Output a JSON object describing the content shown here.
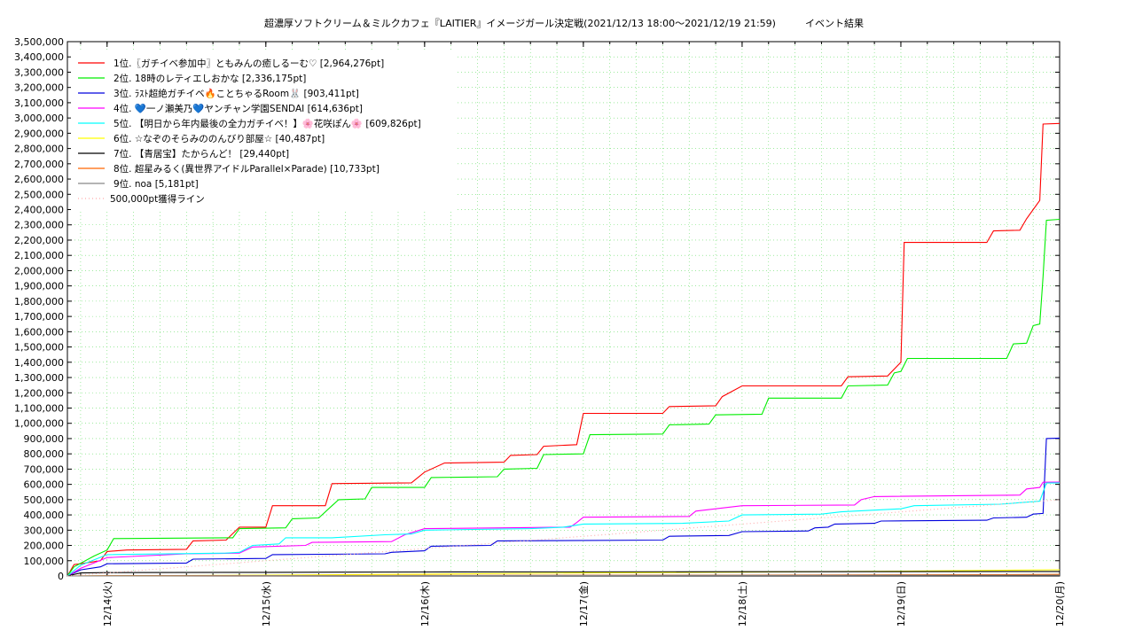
{
  "chart_data": {
    "type": "line",
    "title": "超濃厚ソフトクリーム＆ミルクカフェ『LAITIER』イメージガール決定戦(2021/12/13 18:00～2021/12/19 21:59)　　　イベント結果",
    "xlabel": "",
    "ylabel": "",
    "xlim": [
      "2021-12-13 18:00",
      "2021-12-20 00:00"
    ],
    "ylim": [
      0,
      3500000
    ],
    "y_ticks": [
      "0",
      "100,000",
      "200,000",
      "300,000",
      "400,000",
      "500,000",
      "600,000",
      "700,000",
      "800,000",
      "900,000",
      "1,000,000",
      "1,100,000",
      "1,200,000",
      "1,300,000",
      "1,400,000",
      "1,500,000",
      "1,600,000",
      "1,700,000",
      "1,800,000",
      "1,900,000",
      "2,000,000",
      "2,100,000",
      "2,200,000",
      "2,300,000",
      "2,400,000",
      "2,500,000",
      "2,600,000",
      "2,700,000",
      "2,800,000",
      "2,900,000",
      "3,000,000",
      "3,100,000",
      "3,200,000",
      "3,300,000",
      "3,400,000",
      "3,500,000"
    ],
    "x_ticks": [
      {
        "t": "2021-12-14 00:00",
        "label": "12/14(火)"
      },
      {
        "t": "2021-12-15 00:00",
        "label": "12/15(水)"
      },
      {
        "t": "2021-12-16 00:00",
        "label": "12/16(木)"
      },
      {
        "t": "2021-12-17 00:00",
        "label": "12/17(金)"
      },
      {
        "t": "2021-12-18 00:00",
        "label": "12/18(土)"
      },
      {
        "t": "2021-12-19 00:00",
        "label": "12/19(日)"
      },
      {
        "t": "2021-12-20 00:00",
        "label": "12/20(月)"
      }
    ],
    "grid": true,
    "legend_position": "top-left",
    "series": [
      {
        "name": "1位.〖ガチイベ参加中〗ともみんの癒しるーむ♡ [2,964,276pt]",
        "color": "#ff0000",
        "points": [
          [
            "2021-12-13 18:00",
            0
          ],
          [
            "2021-12-13 19:00",
            75000
          ],
          [
            "2021-12-13 20:00",
            80000
          ],
          [
            "2021-12-13 23:00",
            100000
          ],
          [
            "2021-12-14 00:00",
            160000
          ],
          [
            "2021-12-14 03:00",
            170000
          ],
          [
            "2021-12-14 12:00",
            175000
          ],
          [
            "2021-12-14 13:00",
            230000
          ],
          [
            "2021-12-14 18:00",
            235000
          ],
          [
            "2021-12-14 20:00",
            320000
          ],
          [
            "2021-12-15 00:00",
            320000
          ],
          [
            "2021-12-15 01:00",
            460000
          ],
          [
            "2021-12-15 09:00",
            460000
          ],
          [
            "2021-12-15 10:00",
            605000
          ],
          [
            "2021-12-15 22:00",
            610000
          ],
          [
            "2021-12-16 00:00",
            680000
          ],
          [
            "2021-12-16 03:00",
            740000
          ],
          [
            "2021-12-16 12:00",
            745000
          ],
          [
            "2021-12-16 13:00",
            790000
          ],
          [
            "2021-12-16 17:00",
            795000
          ],
          [
            "2021-12-16 18:00",
            850000
          ],
          [
            "2021-12-16 23:00",
            860000
          ],
          [
            "2021-12-17 00:00",
            1065000
          ],
          [
            "2021-12-17 12:00",
            1065000
          ],
          [
            "2021-12-17 13:00",
            1110000
          ],
          [
            "2021-12-17 20:00",
            1115000
          ],
          [
            "2021-12-17 21:00",
            1175000
          ],
          [
            "2021-12-18 00:00",
            1245000
          ],
          [
            "2021-12-18 15:00",
            1245000
          ],
          [
            "2021-12-18 16:00",
            1305000
          ],
          [
            "2021-12-18 22:00",
            1310000
          ],
          [
            "2021-12-19 00:00",
            1400000
          ],
          [
            "2021-12-19 00:30",
            2185000
          ],
          [
            "2021-12-19 13:00",
            2185000
          ],
          [
            "2021-12-19 14:00",
            2260000
          ],
          [
            "2021-12-19 18:00",
            2265000
          ],
          [
            "2021-12-19 19:00",
            2340000
          ],
          [
            "2021-12-19 21:00",
            2460000
          ],
          [
            "2021-12-19 21:30",
            2960000
          ],
          [
            "2021-12-20 00:00",
            2964276
          ]
        ]
      },
      {
        "name": "2位. 18時のレティエしおかな [2,336,175pt]",
        "color": "#00ee00",
        "points": [
          [
            "2021-12-13 18:00",
            0
          ],
          [
            "2021-12-13 19:00",
            60000
          ],
          [
            "2021-12-13 22:00",
            130000
          ],
          [
            "2021-12-14 00:00",
            170000
          ],
          [
            "2021-12-14 01:00",
            245000
          ],
          [
            "2021-12-14 19:00",
            250000
          ],
          [
            "2021-12-14 20:00",
            310000
          ],
          [
            "2021-12-15 03:00",
            315000
          ],
          [
            "2021-12-15 04:00",
            375000
          ],
          [
            "2021-12-15 08:00",
            380000
          ],
          [
            "2021-12-15 10:00",
            460000
          ],
          [
            "2021-12-15 11:00",
            500000
          ],
          [
            "2021-12-15 15:00",
            505000
          ],
          [
            "2021-12-15 16:00",
            580000
          ],
          [
            "2021-12-16 00:00",
            580000
          ],
          [
            "2021-12-16 01:00",
            645000
          ],
          [
            "2021-12-16 11:00",
            650000
          ],
          [
            "2021-12-16 12:00",
            700000
          ],
          [
            "2021-12-16 17:00",
            705000
          ],
          [
            "2021-12-16 18:00",
            795000
          ],
          [
            "2021-12-17 00:00",
            800000
          ],
          [
            "2021-12-17 01:00",
            925000
          ],
          [
            "2021-12-17 12:00",
            930000
          ],
          [
            "2021-12-17 13:00",
            990000
          ],
          [
            "2021-12-17 19:00",
            995000
          ],
          [
            "2021-12-17 20:00",
            1055000
          ],
          [
            "2021-12-18 03:00",
            1060000
          ],
          [
            "2021-12-18 04:00",
            1165000
          ],
          [
            "2021-12-18 15:00",
            1165000
          ],
          [
            "2021-12-18 16:00",
            1245000
          ],
          [
            "2021-12-18 22:00",
            1250000
          ],
          [
            "2021-12-18 23:00",
            1330000
          ],
          [
            "2021-12-19 00:00",
            1340000
          ],
          [
            "2021-12-19 01:00",
            1425000
          ],
          [
            "2021-12-19 16:00",
            1425000
          ],
          [
            "2021-12-19 17:00",
            1520000
          ],
          [
            "2021-12-19 19:00",
            1525000
          ],
          [
            "2021-12-19 20:00",
            1640000
          ],
          [
            "2021-12-19 21:00",
            1650000
          ],
          [
            "2021-12-19 21:30",
            1960000
          ],
          [
            "2021-12-19 22:00",
            2330000
          ],
          [
            "2021-12-20 00:00",
            2336175
          ]
        ]
      },
      {
        "name": "3位. ﾗｽﾄ超絶ガチイベ🔥ことちゃるRoom🐰 [903,411pt]",
        "color": "#0000dd",
        "points": [
          [
            "2021-12-13 18:00",
            0
          ],
          [
            "2021-12-13 20:00",
            40000
          ],
          [
            "2021-12-13 23:00",
            60000
          ],
          [
            "2021-12-14 00:00",
            80000
          ],
          [
            "2021-12-14 12:00",
            85000
          ],
          [
            "2021-12-14 13:00",
            110000
          ],
          [
            "2021-12-15 00:00",
            115000
          ],
          [
            "2021-12-15 01:00",
            140000
          ],
          [
            "2021-12-15 18:00",
            145000
          ],
          [
            "2021-12-15 19:00",
            155000
          ],
          [
            "2021-12-16 00:00",
            165000
          ],
          [
            "2021-12-16 01:00",
            195000
          ],
          [
            "2021-12-16 10:00",
            200000
          ],
          [
            "2021-12-16 11:00",
            230000
          ],
          [
            "2021-12-17 12:00",
            235000
          ],
          [
            "2021-12-17 13:00",
            260000
          ],
          [
            "2021-12-17 22:00",
            265000
          ],
          [
            "2021-12-18 00:00",
            290000
          ],
          [
            "2021-12-18 10:00",
            295000
          ],
          [
            "2021-12-18 11:00",
            315000
          ],
          [
            "2021-12-18 13:00",
            320000
          ],
          [
            "2021-12-18 14:00",
            340000
          ],
          [
            "2021-12-18 20:00",
            345000
          ],
          [
            "2021-12-18 21:00",
            360000
          ],
          [
            "2021-12-19 13:00",
            365000
          ],
          [
            "2021-12-19 14:00",
            380000
          ],
          [
            "2021-12-19 19:00",
            385000
          ],
          [
            "2021-12-19 20:00",
            405000
          ],
          [
            "2021-12-19 21:30",
            410000
          ],
          [
            "2021-12-19 22:00",
            900000
          ],
          [
            "2021-12-20 00:00",
            903411
          ]
        ]
      },
      {
        "name": "4位. 💙一ノ瀬美乃💙ヤンチャン学園SENDAI [614,636pt]",
        "color": "#ff00ff",
        "points": [
          [
            "2021-12-13 18:00",
            0
          ],
          [
            "2021-12-13 20:00",
            50000
          ],
          [
            "2021-12-14 00:00",
            120000
          ],
          [
            "2021-12-14 12:00",
            145000
          ],
          [
            "2021-12-14 20:00",
            150000
          ],
          [
            "2021-12-14 22:00",
            190000
          ],
          [
            "2021-12-15 06:00",
            200000
          ],
          [
            "2021-12-15 07:00",
            220000
          ],
          [
            "2021-12-15 19:00",
            225000
          ],
          [
            "2021-12-15 21:00",
            270000
          ],
          [
            "2021-12-16 00:00",
            310000
          ],
          [
            "2021-12-16 12:00",
            315000
          ],
          [
            "2021-12-16 22:00",
            320000
          ],
          [
            "2021-12-16 23:00",
            350000
          ],
          [
            "2021-12-17 00:00",
            385000
          ],
          [
            "2021-12-17 16:00",
            390000
          ],
          [
            "2021-12-17 17:00",
            425000
          ],
          [
            "2021-12-18 00:00",
            460000
          ],
          [
            "2021-12-18 17:00",
            465000
          ],
          [
            "2021-12-18 18:00",
            500000
          ],
          [
            "2021-12-18 20:00",
            520000
          ],
          [
            "2021-12-19 18:00",
            530000
          ],
          [
            "2021-12-19 19:00",
            570000
          ],
          [
            "2021-12-19 21:00",
            580000
          ],
          [
            "2021-12-19 21:30",
            614000
          ],
          [
            "2021-12-20 00:00",
            614636
          ]
        ]
      },
      {
        "name": "5位. 【明日から年内最後の全力ガチイベ！】🌸花咲ぽん🌸 [609,826pt]",
        "color": "#00ffff",
        "points": [
          [
            "2021-12-13 18:00",
            0
          ],
          [
            "2021-12-13 20:00",
            70000
          ],
          [
            "2021-12-14 00:00",
            140000
          ],
          [
            "2021-12-14 18:00",
            150000
          ],
          [
            "2021-12-14 20:00",
            155000
          ],
          [
            "2021-12-14 22:00",
            200000
          ],
          [
            "2021-12-15 02:00",
            210000
          ],
          [
            "2021-12-15 03:00",
            250000
          ],
          [
            "2021-12-15 10:00",
            250000
          ],
          [
            "2021-12-15 18:00",
            270000
          ],
          [
            "2021-12-15 22:00",
            275000
          ],
          [
            "2021-12-16 00:00",
            300000
          ],
          [
            "2021-12-16 16:00",
            310000
          ],
          [
            "2021-12-16 21:00",
            320000
          ],
          [
            "2021-12-17 00:00",
            340000
          ],
          [
            "2021-12-17 15:00",
            345000
          ],
          [
            "2021-12-17 22:00",
            360000
          ],
          [
            "2021-12-18 00:00",
            400000
          ],
          [
            "2021-12-18 12:00",
            405000
          ],
          [
            "2021-12-18 15:00",
            420000
          ],
          [
            "2021-12-19 00:00",
            440000
          ],
          [
            "2021-12-19 02:00",
            460000
          ],
          [
            "2021-12-19 15:00",
            470000
          ],
          [
            "2021-12-19 21:00",
            490000
          ],
          [
            "2021-12-19 22:00",
            609000
          ],
          [
            "2021-12-20 00:00",
            609826
          ]
        ]
      },
      {
        "name": "6位. ☆なぞのそらみののんびり部屋☆ [40,487pt]",
        "color": "#ffff00",
        "points": [
          [
            "2021-12-13 18:00",
            0
          ],
          [
            "2021-12-15 00:00",
            5000
          ],
          [
            "2021-12-16 00:00",
            12000
          ],
          [
            "2021-12-17 00:00",
            20000
          ],
          [
            "2021-12-18 00:00",
            25000
          ],
          [
            "2021-12-19 00:00",
            32000
          ],
          [
            "2021-12-20 00:00",
            40487
          ]
        ]
      },
      {
        "name": "7位. 【青居宝】たからんど！ [29,440pt]",
        "color": "#000000",
        "points": [
          [
            "2021-12-13 18:00",
            0
          ],
          [
            "2021-12-13 20:00",
            20000
          ],
          [
            "2021-12-14 00:00",
            22000
          ],
          [
            "2021-12-15 00:00",
            24000
          ],
          [
            "2021-12-16 00:00",
            26000
          ],
          [
            "2021-12-18 00:00",
            28000
          ],
          [
            "2021-12-20 00:00",
            29440
          ]
        ]
      },
      {
        "name": "8位. 超星みるく(異世界アイドルParallel×Parade) [10,733pt]",
        "color": "#ff6600",
        "points": [
          [
            "2021-12-13 18:00",
            0
          ],
          [
            "2021-12-14 00:00",
            2000
          ],
          [
            "2021-12-16 00:00",
            4000
          ],
          [
            "2021-12-18 00:00",
            6000
          ],
          [
            "2021-12-19 12:00",
            8000
          ],
          [
            "2021-12-20 00:00",
            10733
          ]
        ]
      },
      {
        "name": "9位. noa [5,181pt]",
        "color": "#888888",
        "points": [
          [
            "2021-12-13 18:00",
            0
          ],
          [
            "2021-12-15 00:00",
            2000
          ],
          [
            "2021-12-17 00:00",
            3500
          ],
          [
            "2021-12-20 00:00",
            5181
          ]
        ]
      },
      {
        "name": "500,000pt獲得ライン",
        "color": "#ffaaaa",
        "dashed": true,
        "points": [
          [
            "2021-12-13 18:00",
            0
          ],
          [
            "2021-12-20 00:00",
            500000
          ]
        ]
      }
    ]
  }
}
